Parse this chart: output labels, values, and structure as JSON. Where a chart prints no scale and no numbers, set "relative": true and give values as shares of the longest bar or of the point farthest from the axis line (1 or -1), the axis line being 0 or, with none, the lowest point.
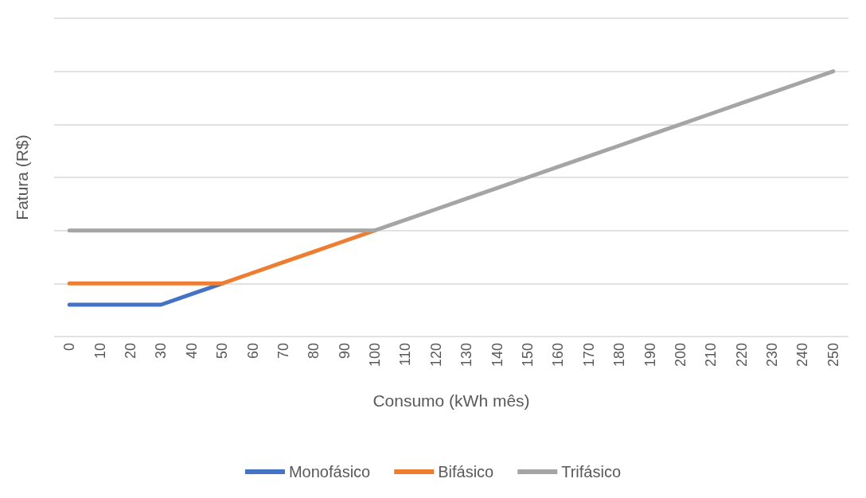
{
  "chart_data": {
    "type": "line",
    "relative": true,
    "xlabel": "Consumo (kWh mês)",
    "ylabel": "Fatura (R$)",
    "categories": [
      "0",
      "10",
      "20",
      "30",
      "40",
      "50",
      "60",
      "70",
      "80",
      "90",
      "100",
      "110",
      "120",
      "130",
      "140",
      "150",
      "160",
      "170",
      "180",
      "190",
      "200",
      "210",
      "220",
      "230",
      "240",
      "250"
    ],
    "series": [
      {
        "name": "Monofásico",
        "color": "#4472c4",
        "values": [
          0.12,
          0.12,
          0.12,
          0.12,
          0.16,
          0.2,
          null,
          null,
          null,
          null,
          null,
          null,
          null,
          null,
          null,
          null,
          null,
          null,
          null,
          null,
          null,
          null,
          null,
          null,
          null,
          null
        ]
      },
      {
        "name": "Bifásico",
        "color": "#ed7d31",
        "values": [
          0.2,
          0.2,
          0.2,
          0.2,
          0.2,
          0.2,
          0.24,
          0.28,
          0.32,
          0.36,
          0.4,
          null,
          null,
          null,
          null,
          null,
          null,
          null,
          null,
          null,
          null,
          null,
          null,
          null,
          null,
          null
        ]
      },
      {
        "name": "Trifásico",
        "color": "#a5a5a5",
        "values": [
          0.4,
          0.4,
          0.4,
          0.4,
          0.4,
          0.4,
          0.4,
          0.4,
          0.4,
          0.4,
          0.4,
          0.44,
          0.48,
          0.52,
          0.56,
          0.6,
          0.64,
          0.68,
          0.72,
          0.76,
          0.8,
          0.84,
          0.88,
          0.92,
          0.96,
          1
        ]
      }
    ],
    "grid": "y",
    "legend": "bottom",
    "marker": "none",
    "line_style": "solid"
  }
}
